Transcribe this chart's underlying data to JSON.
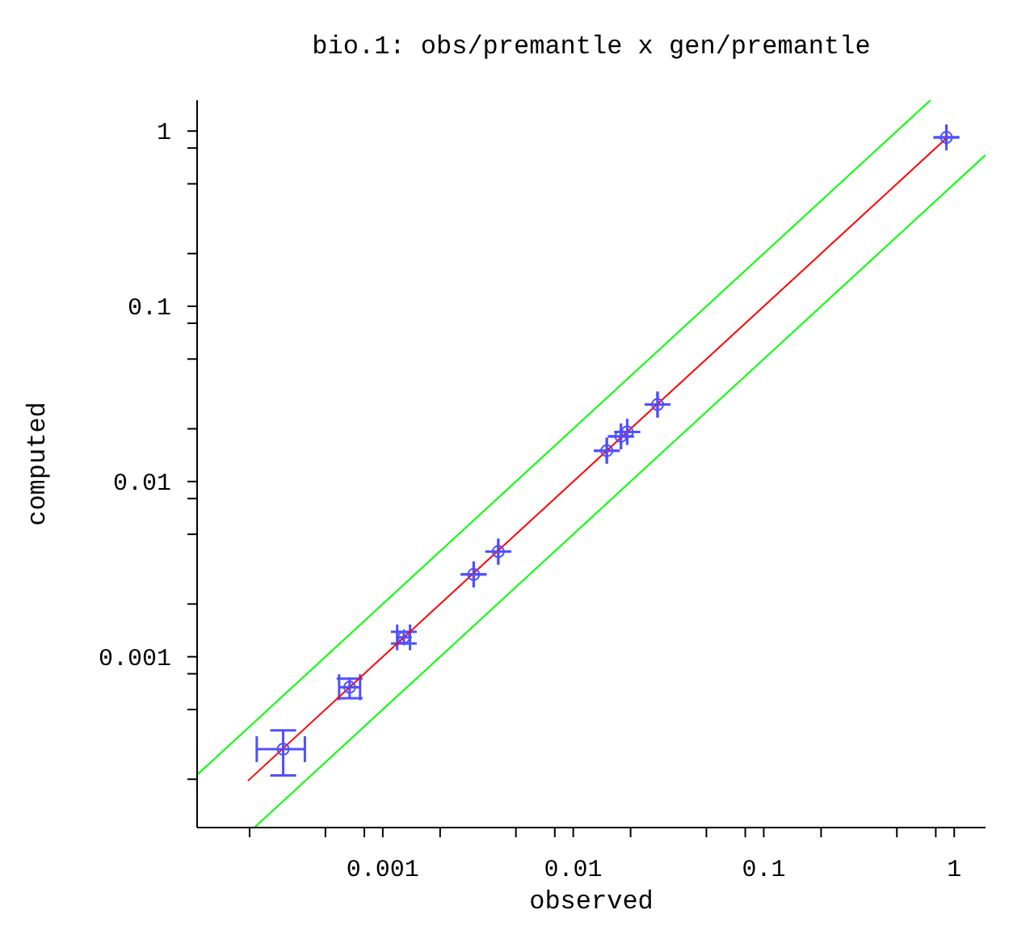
{
  "chart_data": {
    "type": "scatter",
    "title": "bio.1: obs/premantle x gen/premantle",
    "xlabel": "observed",
    "ylabel": "computed",
    "log": "xy",
    "grid": false,
    "legend": false,
    "xlim": [
      0.000106,
      1.46
    ],
    "ylim": [
      0.000106,
      1.5
    ],
    "xticks": [
      {
        "value": 0.0002,
        "label": null
      },
      {
        "value": 0.0005,
        "label": null
      },
      {
        "value": 0.0008,
        "label": null
      },
      0.001,
      {
        "value": 0.002,
        "label": null
      },
      {
        "value": 0.005,
        "label": null
      },
      {
        "value": 0.008,
        "label": null
      },
      0.01,
      {
        "value": 0.02,
        "label": null
      },
      {
        "value": 0.05,
        "label": null
      },
      {
        "value": 0.08,
        "label": null
      },
      0.1,
      {
        "value": 0.2,
        "label": null
      },
      {
        "value": 0.5,
        "label": null
      },
      {
        "value": 0.8,
        "label": null
      },
      1
    ],
    "yticks": [
      {
        "value": 0.0002,
        "label": null
      },
      {
        "value": 0.0005,
        "label": null
      },
      {
        "value": 0.0008,
        "label": null
      },
      0.001,
      {
        "value": 0.002,
        "label": null
      },
      {
        "value": 0.005,
        "label": null
      },
      {
        "value": 0.008,
        "label": null
      },
      0.01,
      {
        "value": 0.02,
        "label": null
      },
      {
        "value": 0.05,
        "label": null
      },
      {
        "value": 0.08,
        "label": null
      },
      0.1,
      {
        "value": 0.2,
        "label": null
      },
      {
        "value": 0.5,
        "label": null
      },
      {
        "value": 0.8,
        "label": null
      },
      1
    ],
    "series": [
      {
        "color": "#5050ff",
        "marker": "circle",
        "x": [
          0.0003,
          0.00067,
          0.00129,
          0.003,
          0.00404,
          0.015,
          0.0178,
          0.0192,
          0.0277,
          0.91
        ],
        "values": [
          0.000297,
          0.00067,
          0.00129,
          0.00295,
          0.00398,
          0.015,
          0.0181,
          0.0192,
          0.0275,
          0.92
        ],
        "errors": [
          [
            0.00021,
            0.00038
          ],
          [
            0.00058,
            0.00075
          ],
          [
            0.00119,
            0.00139
          ],
          null,
          null,
          null,
          null,
          null,
          null,
          null
        ],
        "xerrors": [
          [
            0.000218,
            0.00039
          ],
          [
            0.00059,
            0.00076
          ],
          [
            0.00119,
            0.00139
          ],
          null,
          null,
          null,
          null,
          null,
          null,
          null
        ]
      },
      {
        "type": "line",
        "color": "#ff0000",
        "x": [
          0.000196,
          0.91
        ],
        "values": [
          0.000196,
          0.91
        ]
      },
      {
        "type": "line",
        "color": "#00ff00",
        "x": [
          0.000106,
          0.75
        ],
        "values": [
          0.000212,
          1.5
        ]
      },
      {
        "type": "line",
        "color": "#00ff00",
        "x": [
          0.000212,
          1.46
        ],
        "values": [
          0.000106,
          0.73
        ]
      }
    ]
  }
}
